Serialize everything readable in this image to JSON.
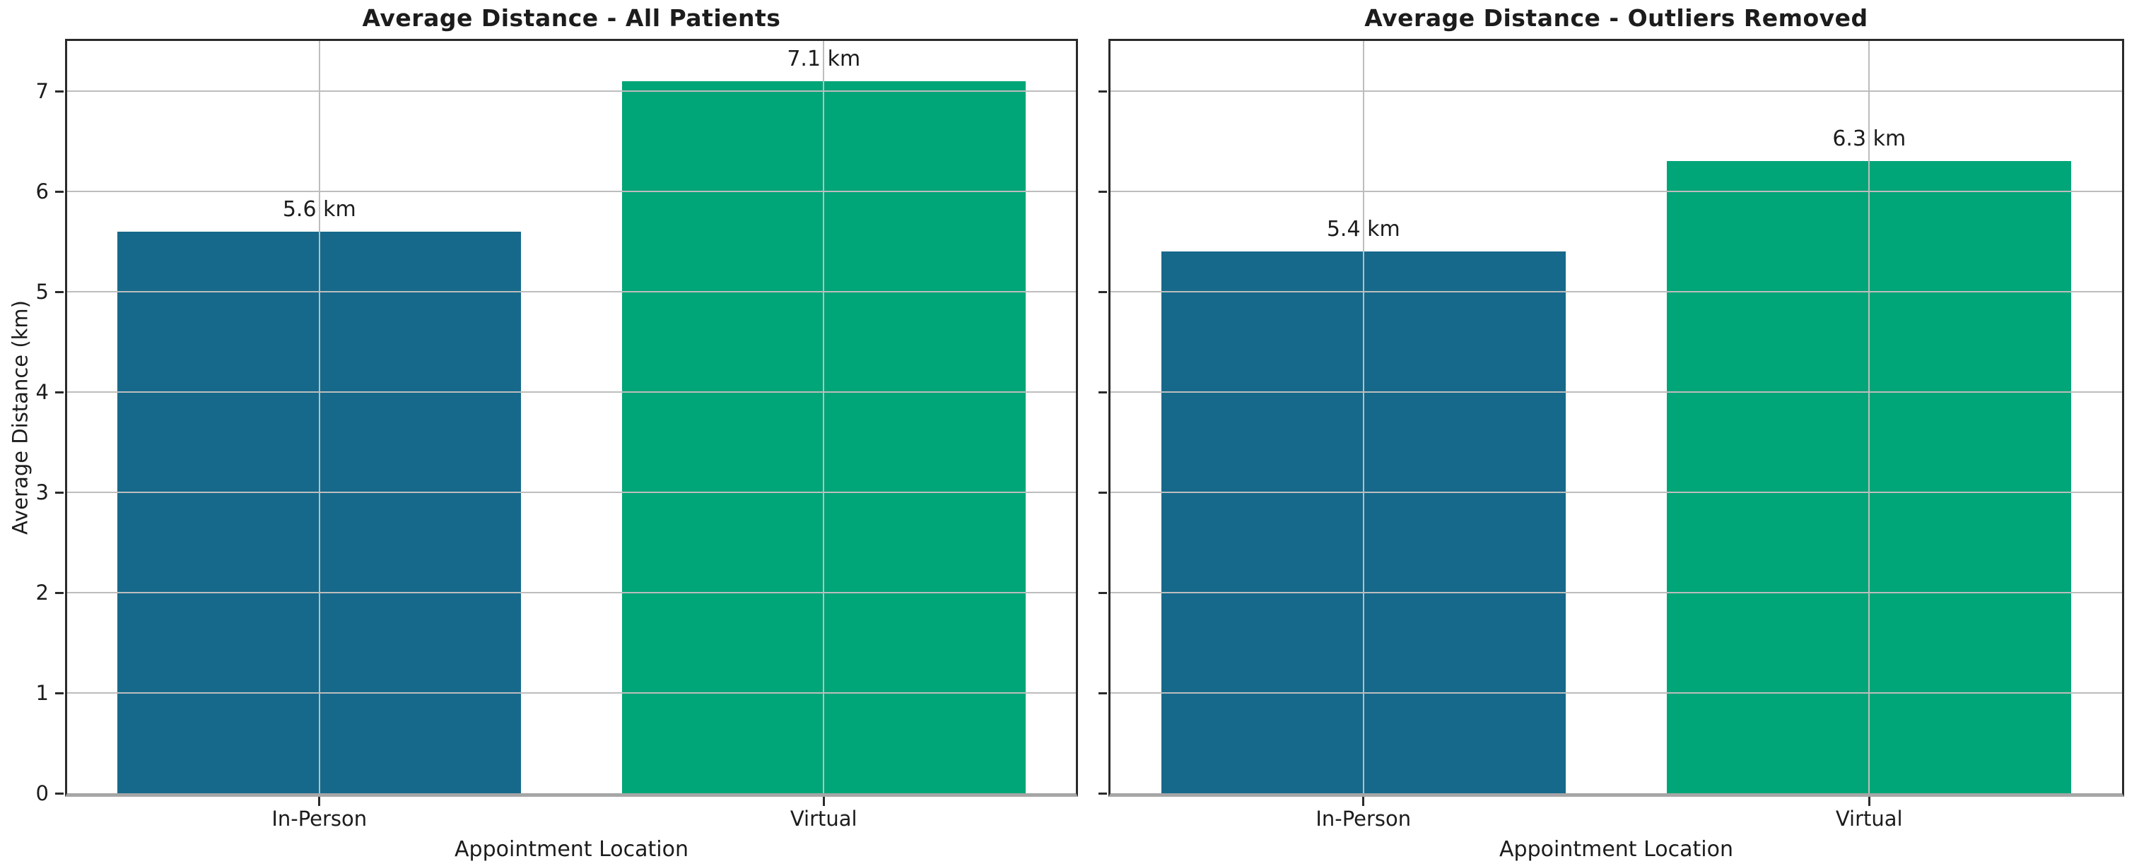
{
  "figure": {
    "background_color": "#ffffff",
    "text_color": "#1c1c1c",
    "grid_color": "#bdbdbd",
    "spine_color": "#2a2a2a",
    "bar_color_in_person": "#16698b",
    "bar_color_virtual": "#00a578"
  },
  "chart_data": [
    {
      "type": "bar",
      "title": "Average Distance - All Patients",
      "categories": [
        "In-Person",
        "Virtual"
      ],
      "values": [
        5.6,
        7.1
      ],
      "bar_labels": [
        "5.6 km",
        "7.1 km"
      ],
      "bar_colors": [
        "#16698b",
        "#00a578"
      ],
      "xlabel": "Appointment Location",
      "ylabel": "Average Distance (km)",
      "ylim": [
        0,
        7.5
      ],
      "yticks": [
        0,
        1,
        2,
        3,
        4,
        5,
        6,
        7
      ],
      "ytick_labels": [
        "0",
        "1",
        "2",
        "3",
        "4",
        "5",
        "6",
        "7"
      ],
      "show_ytick_labels": true,
      "grid": true,
      "legend_position": "none"
    },
    {
      "type": "bar",
      "title": "Average Distance - Outliers Removed",
      "categories": [
        "In-Person",
        "Virtual"
      ],
      "values": [
        5.4,
        6.3
      ],
      "bar_labels": [
        "5.4 km",
        "6.3 km"
      ],
      "bar_colors": [
        "#16698b",
        "#00a578"
      ],
      "xlabel": "Appointment Location",
      "ylabel": "",
      "ylim": [
        0,
        7.5
      ],
      "yticks": [
        0,
        1,
        2,
        3,
        4,
        5,
        6,
        7
      ],
      "ytick_labels": [
        "0",
        "1",
        "2",
        "3",
        "4",
        "5",
        "6",
        "7"
      ],
      "show_ytick_labels": false,
      "grid": true,
      "legend_position": "none"
    }
  ]
}
